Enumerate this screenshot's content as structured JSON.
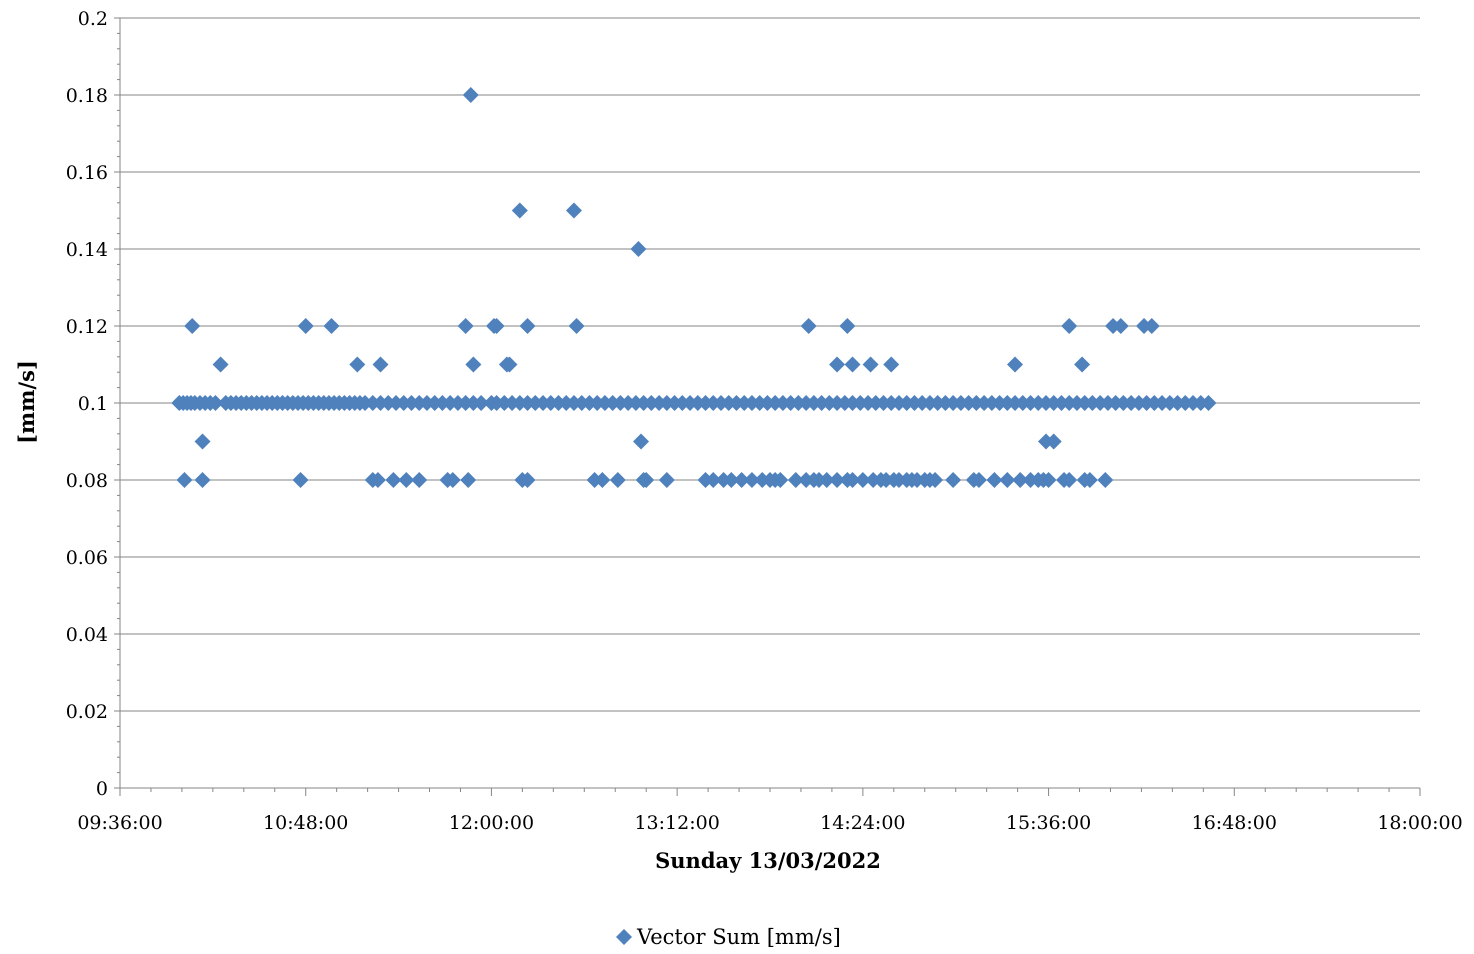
{
  "chart_data": {
    "type": "scatter",
    "title": "",
    "xlabel": "Sunday 13/03/2022",
    "ylabel": "[mm/s]",
    "ylim": [
      0,
      0.2
    ],
    "y_ticks": [
      "0",
      "0.02",
      "0.04",
      "0.06",
      "0.08",
      "0.1",
      "0.12",
      "0.14",
      "0.16",
      "0.18",
      "0.2"
    ],
    "xlim": [
      "09:36:00",
      "18:00:00"
    ],
    "x_ticks": [
      "09:36:00",
      "10:48:00",
      "12:00:00",
      "13:12:00",
      "14:24:00",
      "15:36:00",
      "16:48:00",
      "18:00:00"
    ],
    "grid": "horizontal",
    "legend_position": "bottom",
    "marker_color": "#4F81BD",
    "series": [
      {
        "name": "Vector Sum [mm/s]",
        "points": [
          [
            "09:59:00",
            0.1
          ],
          [
            "10:00:30",
            0.1
          ],
          [
            "10:02:00",
            0.1
          ],
          [
            "10:03:30",
            0.1
          ],
          [
            "10:05:00",
            0.1
          ],
          [
            "10:07:00",
            0.1
          ],
          [
            "10:09:00",
            0.1
          ],
          [
            "10:11:00",
            0.1
          ],
          [
            "10:13:00",
            0.1
          ],
          [
            "10:17:00",
            0.1
          ],
          [
            "10:19:00",
            0.1
          ],
          [
            "10:21:00",
            0.1
          ],
          [
            "10:23:00",
            0.1
          ],
          [
            "10:25:00",
            0.1
          ],
          [
            "10:27:00",
            0.1
          ],
          [
            "10:29:00",
            0.1
          ],
          [
            "10:31:00",
            0.1
          ],
          [
            "10:33:00",
            0.1
          ],
          [
            "10:35:00",
            0.1
          ],
          [
            "10:37:00",
            0.1
          ],
          [
            "10:39:00",
            0.1
          ],
          [
            "10:41:00",
            0.1
          ],
          [
            "10:43:00",
            0.1
          ],
          [
            "10:45:00",
            0.1
          ],
          [
            "10:47:00",
            0.1
          ],
          [
            "10:49:00",
            0.1
          ],
          [
            "10:51:00",
            0.1
          ],
          [
            "10:53:00",
            0.1
          ],
          [
            "10:55:00",
            0.1
          ],
          [
            "10:57:00",
            0.1
          ],
          [
            "10:59:00",
            0.1
          ],
          [
            "11:01:00",
            0.1
          ],
          [
            "11:03:00",
            0.1
          ],
          [
            "11:05:00",
            0.1
          ],
          [
            "11:07:00",
            0.1
          ],
          [
            "11:09:00",
            0.1
          ],
          [
            "11:11:00",
            0.1
          ],
          [
            "11:14:00",
            0.1
          ],
          [
            "11:17:00",
            0.1
          ],
          [
            "11:20:00",
            0.1
          ],
          [
            "11:23:00",
            0.1
          ],
          [
            "11:26:00",
            0.1
          ],
          [
            "11:29:00",
            0.1
          ],
          [
            "11:32:00",
            0.1
          ],
          [
            "11:35:00",
            0.1
          ],
          [
            "11:38:00",
            0.1
          ],
          [
            "11:41:00",
            0.1
          ],
          [
            "11:44:00",
            0.1
          ],
          [
            "11:47:00",
            0.1
          ],
          [
            "11:50:00",
            0.1
          ],
          [
            "11:53:00",
            0.1
          ],
          [
            "11:56:00",
            0.1
          ],
          [
            "12:00:00",
            0.1
          ],
          [
            "12:02:00",
            0.1
          ],
          [
            "12:05:00",
            0.1
          ],
          [
            "12:08:00",
            0.1
          ],
          [
            "12:11:00",
            0.1
          ],
          [
            "12:14:00",
            0.1
          ],
          [
            "12:17:00",
            0.1
          ],
          [
            "12:20:00",
            0.1
          ],
          [
            "12:23:00",
            0.1
          ],
          [
            "12:26:00",
            0.1
          ],
          [
            "12:29:00",
            0.1
          ],
          [
            "12:32:00",
            0.1
          ],
          [
            "12:35:00",
            0.1
          ],
          [
            "12:38:00",
            0.1
          ],
          [
            "12:41:00",
            0.1
          ],
          [
            "12:44:00",
            0.1
          ],
          [
            "12:47:00",
            0.1
          ],
          [
            "12:50:00",
            0.1
          ],
          [
            "12:53:00",
            0.1
          ],
          [
            "12:56:00",
            0.1
          ],
          [
            "12:59:00",
            0.1
          ],
          [
            "13:02:00",
            0.1
          ],
          [
            "13:05:00",
            0.1
          ],
          [
            "13:08:00",
            0.1
          ],
          [
            "13:11:00",
            0.1
          ],
          [
            "13:14:00",
            0.1
          ],
          [
            "13:17:00",
            0.1
          ],
          [
            "13:20:00",
            0.1
          ],
          [
            "13:23:00",
            0.1
          ],
          [
            "13:26:00",
            0.1
          ],
          [
            "13:29:00",
            0.1
          ],
          [
            "13:32:00",
            0.1
          ],
          [
            "13:35:00",
            0.1
          ],
          [
            "13:38:00",
            0.1
          ],
          [
            "13:41:00",
            0.1
          ],
          [
            "13:44:00",
            0.1
          ],
          [
            "13:47:00",
            0.1
          ],
          [
            "13:50:00",
            0.1
          ],
          [
            "13:53:00",
            0.1
          ],
          [
            "13:56:00",
            0.1
          ],
          [
            "13:59:00",
            0.1
          ],
          [
            "14:02:00",
            0.1
          ],
          [
            "14:05:00",
            0.1
          ],
          [
            "14:08:00",
            0.1
          ],
          [
            "14:11:00",
            0.1
          ],
          [
            "14:14:00",
            0.1
          ],
          [
            "14:17:00",
            0.1
          ],
          [
            "14:20:00",
            0.1
          ],
          [
            "14:23:00",
            0.1
          ],
          [
            "14:26:00",
            0.1
          ],
          [
            "14:29:00",
            0.1
          ],
          [
            "14:32:00",
            0.1
          ],
          [
            "14:35:00",
            0.1
          ],
          [
            "14:38:00",
            0.1
          ],
          [
            "14:41:00",
            0.1
          ],
          [
            "14:44:00",
            0.1
          ],
          [
            "14:47:00",
            0.1
          ],
          [
            "14:50:00",
            0.1
          ],
          [
            "14:53:00",
            0.1
          ],
          [
            "14:56:00",
            0.1
          ],
          [
            "14:59:00",
            0.1
          ],
          [
            "15:02:00",
            0.1
          ],
          [
            "15:05:00",
            0.1
          ],
          [
            "15:08:00",
            0.1
          ],
          [
            "15:11:00",
            0.1
          ],
          [
            "15:14:00",
            0.1
          ],
          [
            "15:17:00",
            0.1
          ],
          [
            "15:20:00",
            0.1
          ],
          [
            "15:23:00",
            0.1
          ],
          [
            "15:26:00",
            0.1
          ],
          [
            "15:29:00",
            0.1
          ],
          [
            "15:32:00",
            0.1
          ],
          [
            "15:35:00",
            0.1
          ],
          [
            "15:38:00",
            0.1
          ],
          [
            "15:41:00",
            0.1
          ],
          [
            "15:44:00",
            0.1
          ],
          [
            "15:47:00",
            0.1
          ],
          [
            "15:50:00",
            0.1
          ],
          [
            "15:53:00",
            0.1
          ],
          [
            "15:56:00",
            0.1
          ],
          [
            "15:59:00",
            0.1
          ],
          [
            "16:02:00",
            0.1
          ],
          [
            "16:05:00",
            0.1
          ],
          [
            "16:08:00",
            0.1
          ],
          [
            "16:11:00",
            0.1
          ],
          [
            "16:14:00",
            0.1
          ],
          [
            "16:17:00",
            0.1
          ],
          [
            "16:20:00",
            0.1
          ],
          [
            "16:23:00",
            0.1
          ],
          [
            "16:26:00",
            0.1
          ],
          [
            "16:29:00",
            0.1
          ],
          [
            "16:32:00",
            0.1
          ],
          [
            "16:35:00",
            0.1
          ],
          [
            "16:38:00",
            0.1
          ],
          [
            "10:01:00",
            0.08
          ],
          [
            "10:08:00",
            0.08
          ],
          [
            "10:46:00",
            0.08
          ],
          [
            "11:14:00",
            0.08
          ],
          [
            "11:16:00",
            0.08
          ],
          [
            "11:22:00",
            0.08
          ],
          [
            "11:27:00",
            0.08
          ],
          [
            "11:32:00",
            0.08
          ],
          [
            "11:43:00",
            0.08
          ],
          [
            "11:45:00",
            0.08
          ],
          [
            "11:51:00",
            0.08
          ],
          [
            "12:12:00",
            0.08
          ],
          [
            "12:14:00",
            0.08
          ],
          [
            "12:40:00",
            0.08
          ],
          [
            "12:43:00",
            0.08
          ],
          [
            "12:49:00",
            0.08
          ],
          [
            "12:59:00",
            0.08
          ],
          [
            "13:00:00",
            0.08
          ],
          [
            "13:08:00",
            0.08
          ],
          [
            "13:23:00",
            0.08
          ],
          [
            "13:26:00",
            0.08
          ],
          [
            "13:30:00",
            0.08
          ],
          [
            "13:33:00",
            0.08
          ],
          [
            "13:37:00",
            0.08
          ],
          [
            "13:41:00",
            0.08
          ],
          [
            "13:45:00",
            0.08
          ],
          [
            "13:48:00",
            0.08
          ],
          [
            "13:50:00",
            0.08
          ],
          [
            "13:52:00",
            0.08
          ],
          [
            "13:58:00",
            0.08
          ],
          [
            "14:02:00",
            0.08
          ],
          [
            "14:05:00",
            0.08
          ],
          [
            "14:07:00",
            0.08
          ],
          [
            "14:10:00",
            0.08
          ],
          [
            "14:14:00",
            0.08
          ],
          [
            "14:18:00",
            0.08
          ],
          [
            "14:20:00",
            0.08
          ],
          [
            "14:24:00",
            0.08
          ],
          [
            "14:28:00",
            0.08
          ],
          [
            "14:31:00",
            0.08
          ],
          [
            "14:33:00",
            0.08
          ],
          [
            "14:36:00",
            0.08
          ],
          [
            "14:38:00",
            0.08
          ],
          [
            "14:41:00",
            0.08
          ],
          [
            "14:43:00",
            0.08
          ],
          [
            "14:45:00",
            0.08
          ],
          [
            "14:48:00",
            0.08
          ],
          [
            "14:50:00",
            0.08
          ],
          [
            "14:52:00",
            0.08
          ],
          [
            "14:59:00",
            0.08
          ],
          [
            "15:07:00",
            0.08
          ],
          [
            "15:09:00",
            0.08
          ],
          [
            "15:15:00",
            0.08
          ],
          [
            "15:20:00",
            0.08
          ],
          [
            "15:25:00",
            0.08
          ],
          [
            "15:29:00",
            0.08
          ],
          [
            "15:32:00",
            0.08
          ],
          [
            "15:34:00",
            0.08
          ],
          [
            "15:36:00",
            0.08
          ],
          [
            "15:42:00",
            0.08
          ],
          [
            "15:44:00",
            0.08
          ],
          [
            "15:50:00",
            0.08
          ],
          [
            "15:52:00",
            0.08
          ],
          [
            "15:58:00",
            0.08
          ],
          [
            "10:08:00",
            0.09
          ],
          [
            "12:58:00",
            0.09
          ],
          [
            "15:35:00",
            0.09
          ],
          [
            "15:38:00",
            0.09
          ],
          [
            "10:15:00",
            0.11
          ],
          [
            "11:08:00",
            0.11
          ],
          [
            "11:17:00",
            0.11
          ],
          [
            "11:53:00",
            0.11
          ],
          [
            "12:06:00",
            0.11
          ],
          [
            "12:07:00",
            0.11
          ],
          [
            "14:14:00",
            0.11
          ],
          [
            "14:20:00",
            0.11
          ],
          [
            "14:27:00",
            0.11
          ],
          [
            "14:35:00",
            0.11
          ],
          [
            "15:23:00",
            0.11
          ],
          [
            "15:49:00",
            0.11
          ],
          [
            "10:04:00",
            0.12
          ],
          [
            "10:48:00",
            0.12
          ],
          [
            "10:58:00",
            0.12
          ],
          [
            "11:50:00",
            0.12
          ],
          [
            "12:01:00",
            0.12
          ],
          [
            "12:02:00",
            0.12
          ],
          [
            "12:14:00",
            0.12
          ],
          [
            "12:33:00",
            0.12
          ],
          [
            "14:03:00",
            0.12
          ],
          [
            "14:18:00",
            0.12
          ],
          [
            "15:44:00",
            0.12
          ],
          [
            "16:01:00",
            0.12
          ],
          [
            "16:04:00",
            0.12
          ],
          [
            "16:13:00",
            0.12
          ],
          [
            "16:16:00",
            0.12
          ],
          [
            "11:52:00",
            0.18
          ],
          [
            "12:11:00",
            0.15
          ],
          [
            "12:32:00",
            0.15
          ],
          [
            "12:57:00",
            0.14
          ]
        ]
      }
    ]
  }
}
